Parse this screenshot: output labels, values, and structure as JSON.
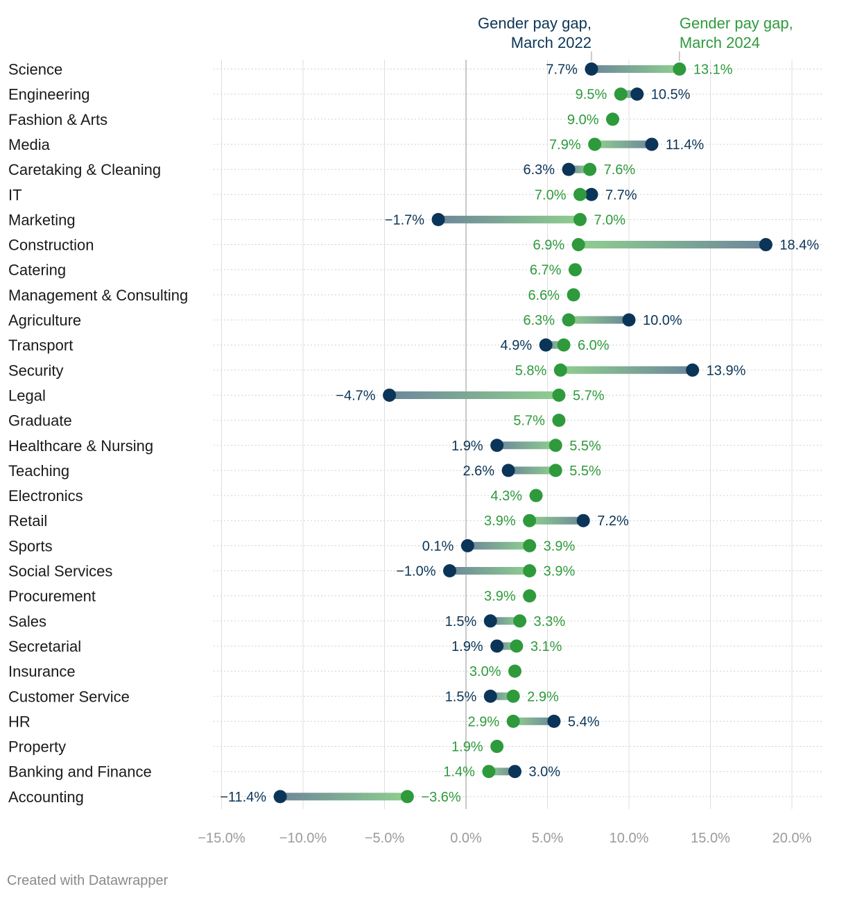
{
  "chart_data": {
    "type": "dumbbell",
    "title": "",
    "legend": {
      "series_2022": [
        "Gender pay gap,",
        "March 2022"
      ],
      "series_2024": [
        "Gender pay gap,",
        "March 2024"
      ]
    },
    "colors": {
      "series_2022": "#0b3558",
      "series_2024": "#2e9a3c",
      "grid": "#dddddd",
      "zero": "#bbbbbb"
    },
    "xlim": [
      -15,
      20
    ],
    "ticks": [
      -15,
      -10,
      -5,
      0,
      5,
      10,
      15,
      20
    ],
    "tick_labels": [
      "−15.0%",
      "−10.0%",
      "−5.0%",
      "0.0%",
      "5.0%",
      "10.0%",
      "15.0%",
      "20.0%"
    ],
    "rows": [
      {
        "category": "Science",
        "v2022": 7.7,
        "l2022": "7.7%",
        "v2024": 13.1,
        "l2024": "13.1%"
      },
      {
        "category": "Engineering",
        "v2022": 10.5,
        "l2022": "10.5%",
        "v2024": 9.5,
        "l2024": "9.5%"
      },
      {
        "category": "Fashion & Arts",
        "v2022": null,
        "l2022": null,
        "v2024": 9.0,
        "l2024": "9.0%"
      },
      {
        "category": "Media",
        "v2022": 11.4,
        "l2022": "11.4%",
        "v2024": 7.9,
        "l2024": "7.9%"
      },
      {
        "category": "Caretaking & Cleaning",
        "v2022": 6.3,
        "l2022": "6.3%",
        "v2024": 7.6,
        "l2024": "7.6%"
      },
      {
        "category": "IT",
        "v2022": 7.7,
        "l2022": "7.7%",
        "v2024": 7.0,
        "l2024": "7.0%"
      },
      {
        "category": "Marketing",
        "v2022": -1.7,
        "l2022": "−1.7%",
        "v2024": 7.0,
        "l2024": "7.0%"
      },
      {
        "category": "Construction",
        "v2022": 18.4,
        "l2022": "18.4%",
        "v2024": 6.9,
        "l2024": "6.9%"
      },
      {
        "category": "Catering",
        "v2022": null,
        "l2022": null,
        "v2024": 6.7,
        "l2024": "6.7%"
      },
      {
        "category": "Management & Consulting",
        "v2022": null,
        "l2022": null,
        "v2024": 6.6,
        "l2024": "6.6%"
      },
      {
        "category": "Agriculture",
        "v2022": 10.0,
        "l2022": "10.0%",
        "v2024": 6.3,
        "l2024": "6.3%"
      },
      {
        "category": "Transport",
        "v2022": 4.9,
        "l2022": "4.9%",
        "v2024": 6.0,
        "l2024": "6.0%"
      },
      {
        "category": "Security",
        "v2022": 13.9,
        "l2022": "13.9%",
        "v2024": 5.8,
        "l2024": "5.8%"
      },
      {
        "category": "Legal",
        "v2022": -4.7,
        "l2022": "−4.7%",
        "v2024": 5.7,
        "l2024": "5.7%"
      },
      {
        "category": "Graduate",
        "v2022": null,
        "l2022": null,
        "v2024": 5.7,
        "l2024": "5.7%"
      },
      {
        "category": "Healthcare & Nursing",
        "v2022": 1.9,
        "l2022": "1.9%",
        "v2024": 5.5,
        "l2024": "5.5%"
      },
      {
        "category": "Teaching",
        "v2022": 2.6,
        "l2022": "2.6%",
        "v2024": 5.5,
        "l2024": "5.5%"
      },
      {
        "category": "Electronics",
        "v2022": null,
        "l2022": null,
        "v2024": 4.3,
        "l2024": "4.3%"
      },
      {
        "category": "Retail",
        "v2022": 7.2,
        "l2022": "7.2%",
        "v2024": 3.9,
        "l2024": "3.9%"
      },
      {
        "category": "Sports",
        "v2022": 0.1,
        "l2022": "0.1%",
        "v2024": 3.9,
        "l2024": "3.9%"
      },
      {
        "category": "Social Services",
        "v2022": -1.0,
        "l2022": "−1.0%",
        "v2024": 3.9,
        "l2024": "3.9%"
      },
      {
        "category": "Procurement",
        "v2022": null,
        "l2022": null,
        "v2024": 3.9,
        "l2024": "3.9%"
      },
      {
        "category": "Sales",
        "v2022": 1.5,
        "l2022": "1.5%",
        "v2024": 3.3,
        "l2024": "3.3%"
      },
      {
        "category": "Secretarial",
        "v2022": 1.9,
        "l2022": "1.9%",
        "v2024": 3.1,
        "l2024": "3.1%"
      },
      {
        "category": "Insurance",
        "v2022": null,
        "l2022": null,
        "v2024": 3.0,
        "l2024": "3.0%"
      },
      {
        "category": "Customer Service",
        "v2022": 1.5,
        "l2022": "1.5%",
        "v2024": 2.9,
        "l2024": "2.9%"
      },
      {
        "category": "HR",
        "v2022": 5.4,
        "l2022": "5.4%",
        "v2024": 2.9,
        "l2024": "2.9%"
      },
      {
        "category": "Property",
        "v2022": null,
        "l2022": null,
        "v2024": 1.9,
        "l2024": "1.9%"
      },
      {
        "category": "Banking and Finance",
        "v2022": 3.0,
        "l2022": "3.0%",
        "v2024": 1.4,
        "l2024": "1.4%"
      },
      {
        "category": "Accounting",
        "v2022": -11.4,
        "l2022": "−11.4%",
        "v2024": -3.6,
        "l2024": "−3.6%"
      }
    ]
  },
  "footer": {
    "credit": "Created with Datawrapper"
  }
}
